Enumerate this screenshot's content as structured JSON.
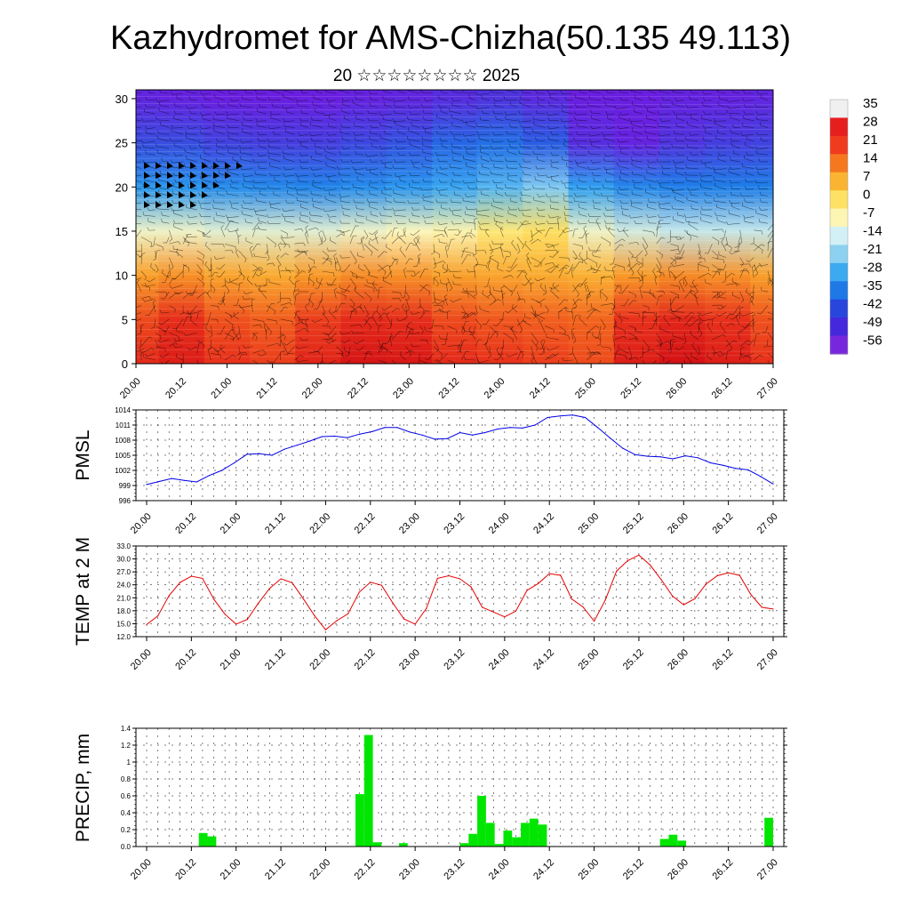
{
  "header": {
    "title": "Kazhydromet for AMS-Chizha(50.135 49.113)",
    "subtitle": "20 ☆☆☆☆☆☆☆☆ 2025"
  },
  "colorbar": {
    "labels": [
      "35",
      "28",
      "21",
      "14",
      "7",
      "0",
      "-7",
      "-14",
      "-21",
      "-28",
      "-35",
      "-42",
      "-49",
      "-56"
    ],
    "colors": [
      "#f0f0f0",
      "#e61e1e",
      "#f03c1e",
      "#f5781e",
      "#fab432",
      "#fde164",
      "#fdf5b4",
      "#d2f0f5",
      "#8cd2f0",
      "#3caaf0",
      "#1e78e6",
      "#2846dc",
      "#4628dc",
      "#7828dc"
    ]
  },
  "chart_data": [
    {
      "type": "heatmap",
      "title": "",
      "xlabel": "",
      "ylabel": "",
      "x": [
        "20.00",
        "20.12",
        "21.00",
        "21.12",
        "22.00",
        "22.12",
        "23.00",
        "23.12",
        "24.00",
        "24.12",
        "25.00",
        "25.12",
        "26.00",
        "26.12",
        "27.00"
      ],
      "y_ticks": [
        0,
        5,
        10,
        15,
        20,
        25,
        30
      ],
      "ylim": [
        0,
        31
      ],
      "value_range": [
        -56,
        35
      ],
      "rows": [
        {
          "y": 0,
          "values": [
            26,
            30,
            24,
            22,
            28,
            33,
            32,
            26,
            24,
            22,
            20,
            30,
            34,
            30,
            24
          ]
        },
        {
          "y": 5,
          "values": [
            20,
            25,
            19,
            17,
            22,
            26,
            25,
            20,
            18,
            17,
            16,
            24,
            27,
            24,
            19
          ]
        },
        {
          "y": 10,
          "values": [
            8,
            10,
            7,
            6,
            9,
            11,
            10,
            8,
            7,
            6,
            5,
            9,
            11,
            10,
            8
          ]
        },
        {
          "y": 15,
          "values": [
            -12,
            -12,
            -13,
            -13,
            -13,
            -12,
            -11,
            -10,
            -6,
            -4,
            -12,
            -14,
            -15,
            -15,
            -15
          ]
        },
        {
          "y": 20,
          "values": [
            -30,
            -30,
            -32,
            -33,
            -34,
            -32,
            -30,
            -27,
            -24,
            -20,
            -28,
            -33,
            -35,
            -35,
            -35
          ]
        },
        {
          "y": 25,
          "values": [
            -45,
            -45,
            -47,
            -48,
            -48,
            -46,
            -44,
            -40,
            -38,
            -42,
            -52,
            -55,
            -50,
            -48,
            -47
          ]
        },
        {
          "y": 30,
          "values": [
            -54,
            -55,
            -56,
            -56,
            -56,
            -55,
            -54,
            -52,
            -50,
            -53,
            -56,
            -56,
            -55,
            -55,
            -54
          ]
        }
      ],
      "overlay": "wind barbs"
    },
    {
      "type": "line",
      "ylabel": "PMSL",
      "ylim": [
        996,
        1014
      ],
      "y_ticks": [
        996,
        999,
        1002,
        1005,
        1008,
        1011,
        1014
      ],
      "x_ticks": [
        "20.00",
        "20.12",
        "21.00",
        "21.12",
        "22.00",
        "22.12",
        "23.00",
        "23.12",
        "24.00",
        "24.12",
        "25.00",
        "25.12",
        "26.00",
        "26.12",
        "27.00"
      ],
      "color": "#0000e6",
      "series": [
        {
          "values": [
            999.2,
            999.8,
            1000.4,
            1000.0,
            999.7,
            1001.0,
            1002.0,
            1003.5,
            1005.2,
            1005.3,
            1005.0,
            1006.2,
            1007.0,
            1007.8,
            1008.7,
            1008.8,
            1008.5,
            1009.2,
            1009.7,
            1010.5,
            1010.5,
            1009.6,
            1009.0,
            1008.2,
            1008.3,
            1009.5,
            1009.0,
            1009.5,
            1010.2,
            1010.5,
            1010.4,
            1011.0,
            1012.5,
            1012.8,
            1013.0,
            1012.5,
            1010.5,
            1008.4,
            1006.4,
            1005.1,
            1004.8,
            1004.7,
            1004.3,
            1004.9,
            1004.5,
            1003.5,
            1003.0,
            1002.4,
            1002.1,
            1000.8,
            999.3
          ]
        }
      ]
    },
    {
      "type": "line",
      "ylabel": "TEMP at 2 M",
      "ylim": [
        12,
        33
      ],
      "y_ticks": [
        "12.0",
        "15.0",
        "18.0",
        "21.0",
        "24.0",
        "27.0",
        "30.0",
        "33.0"
      ],
      "x_ticks": [
        "20.00",
        "20.12",
        "21.00",
        "21.12",
        "22.00",
        "22.12",
        "23.00",
        "23.12",
        "24.00",
        "24.12",
        "25.00",
        "25.12",
        "26.00",
        "26.12",
        "27.00"
      ],
      "color": "#e60000",
      "series": [
        {
          "values": [
            14.8,
            16.8,
            21.5,
            24.6,
            26.0,
            25.5,
            20.7,
            17.2,
            14.9,
            16.0,
            19.8,
            23.2,
            25.4,
            24.5,
            20.8,
            16.9,
            13.6,
            15.7,
            17.3,
            22.3,
            24.6,
            23.9,
            19.8,
            16.1,
            14.9,
            18.5,
            25.5,
            26.1,
            25.4,
            23.5,
            18.8,
            17.7,
            16.6,
            17.9,
            22.7,
            24.3,
            26.6,
            26.2,
            20.7,
            18.9,
            15.6,
            20.5,
            27.2,
            29.6,
            30.9,
            28.6,
            25.2,
            21.4,
            19.4,
            20.8,
            24.2,
            26.1,
            26.8,
            26.2,
            21.8,
            18.8,
            18.4
          ]
        }
      ]
    },
    {
      "type": "bar",
      "ylabel": "PRECIP, mm",
      "ylim": [
        0,
        1.4
      ],
      "y_ticks": [
        "0.0",
        "0.2",
        "0.4",
        "0.6",
        "0.8",
        "1",
        "1.2",
        "1.4"
      ],
      "x_ticks": [
        "20.00",
        "20.12",
        "21.00",
        "21.12",
        "22.00",
        "22.12",
        "23.00",
        "23.12",
        "24.00",
        "24.12",
        "25.00",
        "25.12",
        "26.00",
        "26.12",
        "27.00"
      ],
      "color": "#00e600",
      "series": [
        {
          "values": [
            0,
            0,
            0,
            0,
            0,
            0,
            0.16,
            0.12,
            0,
            0,
            0,
            0,
            0,
            0,
            0,
            0,
            0,
            0,
            0,
            0,
            0,
            0,
            0,
            0,
            0.62,
            1.32,
            0.05,
            0,
            0,
            0.04,
            0,
            0,
            0,
            0,
            0,
            0,
            0.04,
            0.15,
            0.6,
            0.28,
            0.03,
            0.19,
            0.11,
            0.28,
            0.33,
            0.26,
            0,
            0,
            0,
            0,
            0,
            0,
            0,
            0,
            0,
            0,
            0,
            0,
            0,
            0.09,
            0.14,
            0.07,
            0,
            0,
            0,
            0,
            0,
            0,
            0,
            0,
            0,
            0.34
          ]
        }
      ]
    }
  ]
}
